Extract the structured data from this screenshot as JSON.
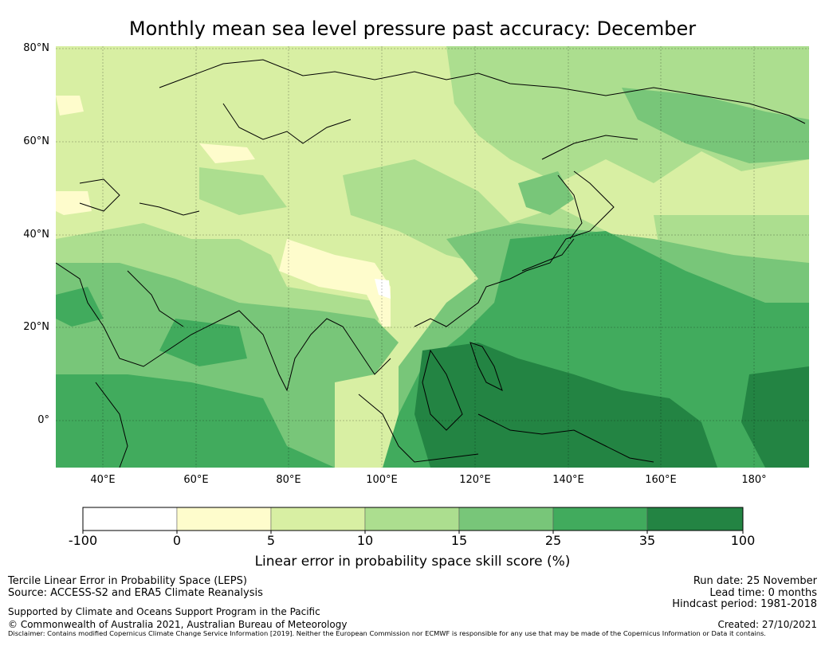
{
  "title": "Monthly mean sea level pressure past accuracy: December",
  "map": {
    "lat_labels": [
      "80°N",
      "60°N",
      "40°N",
      "20°N",
      "0°"
    ],
    "lon_labels": [
      "40°E",
      "60°E",
      "80°E",
      "100°E",
      "120°E",
      "140°E",
      "160°E",
      "180°"
    ]
  },
  "colorbar": {
    "bins": [
      {
        "from": "-100",
        "to": "0",
        "color": "#ffffff"
      },
      {
        "from": "0",
        "to": "5",
        "color": "#fefccc"
      },
      {
        "from": "5",
        "to": "10",
        "color": "#d8efa3"
      },
      {
        "from": "10",
        "to": "15",
        "color": "#acde8f"
      },
      {
        "from": "15",
        "to": "25",
        "color": "#78c679"
      },
      {
        "from": "25",
        "to": "35",
        "color": "#41ab5d"
      },
      {
        "from": "35",
        "to": "100",
        "color": "#238443"
      }
    ],
    "tick_labels": [
      "-100",
      "0",
      "5",
      "10",
      "15",
      "25",
      "35",
      "100"
    ],
    "label": "Linear error in probability space skill score (%)"
  },
  "footer": {
    "method": "Tercile Linear Error in Probability Space (LEPS)",
    "source": "Source: ACCESS-S2 and ERA5 Climate Reanalysis",
    "support": "Supported by Climate and Oceans Support Program in the Pacific",
    "copyright": "© Commonwealth of Australia 2021, Australian Bureau of Meteorology",
    "disclaimer": "Disclaimer: Contains modified Copernicus Climate Change Service Information [2019]. Neither the European Commission nor ECMWF is responsible for any use that may be made of the Copernicus Information or Data it contains.",
    "run_date": "Run date: 25 November",
    "lead_time": "Lead time: 0 months",
    "hindcast": "Hindcast period: 1981-2018",
    "created": "Created: 27/10/2021"
  }
}
